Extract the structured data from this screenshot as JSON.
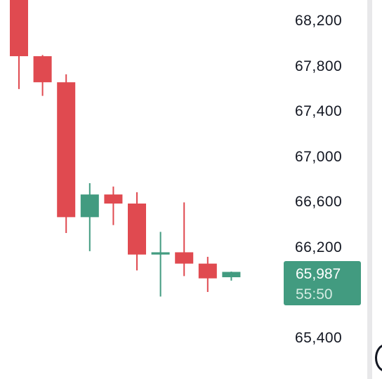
{
  "colors": {
    "up": "#429b80",
    "down": "#e04a50",
    "axis_text": "#131722",
    "badge_bg": "#429b80"
  },
  "last_price": {
    "value": "65,987",
    "countdown": "55:50"
  },
  "chart_data": {
    "type": "candlestick",
    "ylim": [
      65300,
      68300
    ],
    "y_ticks": [
      "68,200",
      "67,800",
      "67,400",
      "67,000",
      "66,600",
      "66,200",
      "65,400"
    ],
    "candles": [
      {
        "open": 68400,
        "high": 68400,
        "close": 67890,
        "low": 67600
      },
      {
        "open": 67890,
        "high": 67900,
        "close": 67660,
        "low": 67540
      },
      {
        "open": 67660,
        "high": 67730,
        "close": 66470,
        "low": 66330
      },
      {
        "open": 66470,
        "high": 66770,
        "close": 66670,
        "low": 66170
      },
      {
        "open": 66670,
        "high": 66740,
        "close": 66590,
        "low": 66400
      },
      {
        "open": 66590,
        "high": 66690,
        "close": 66140,
        "low": 66000
      },
      {
        "open": 66140,
        "high": 66340,
        "close": 66160,
        "low": 65770
      },
      {
        "open": 66160,
        "high": 66600,
        "close": 66060,
        "low": 65950
      },
      {
        "open": 66060,
        "high": 66120,
        "close": 65930,
        "low": 65810
      },
      {
        "open": 65940,
        "high": 65990,
        "close": 65987,
        "low": 65910
      }
    ]
  }
}
